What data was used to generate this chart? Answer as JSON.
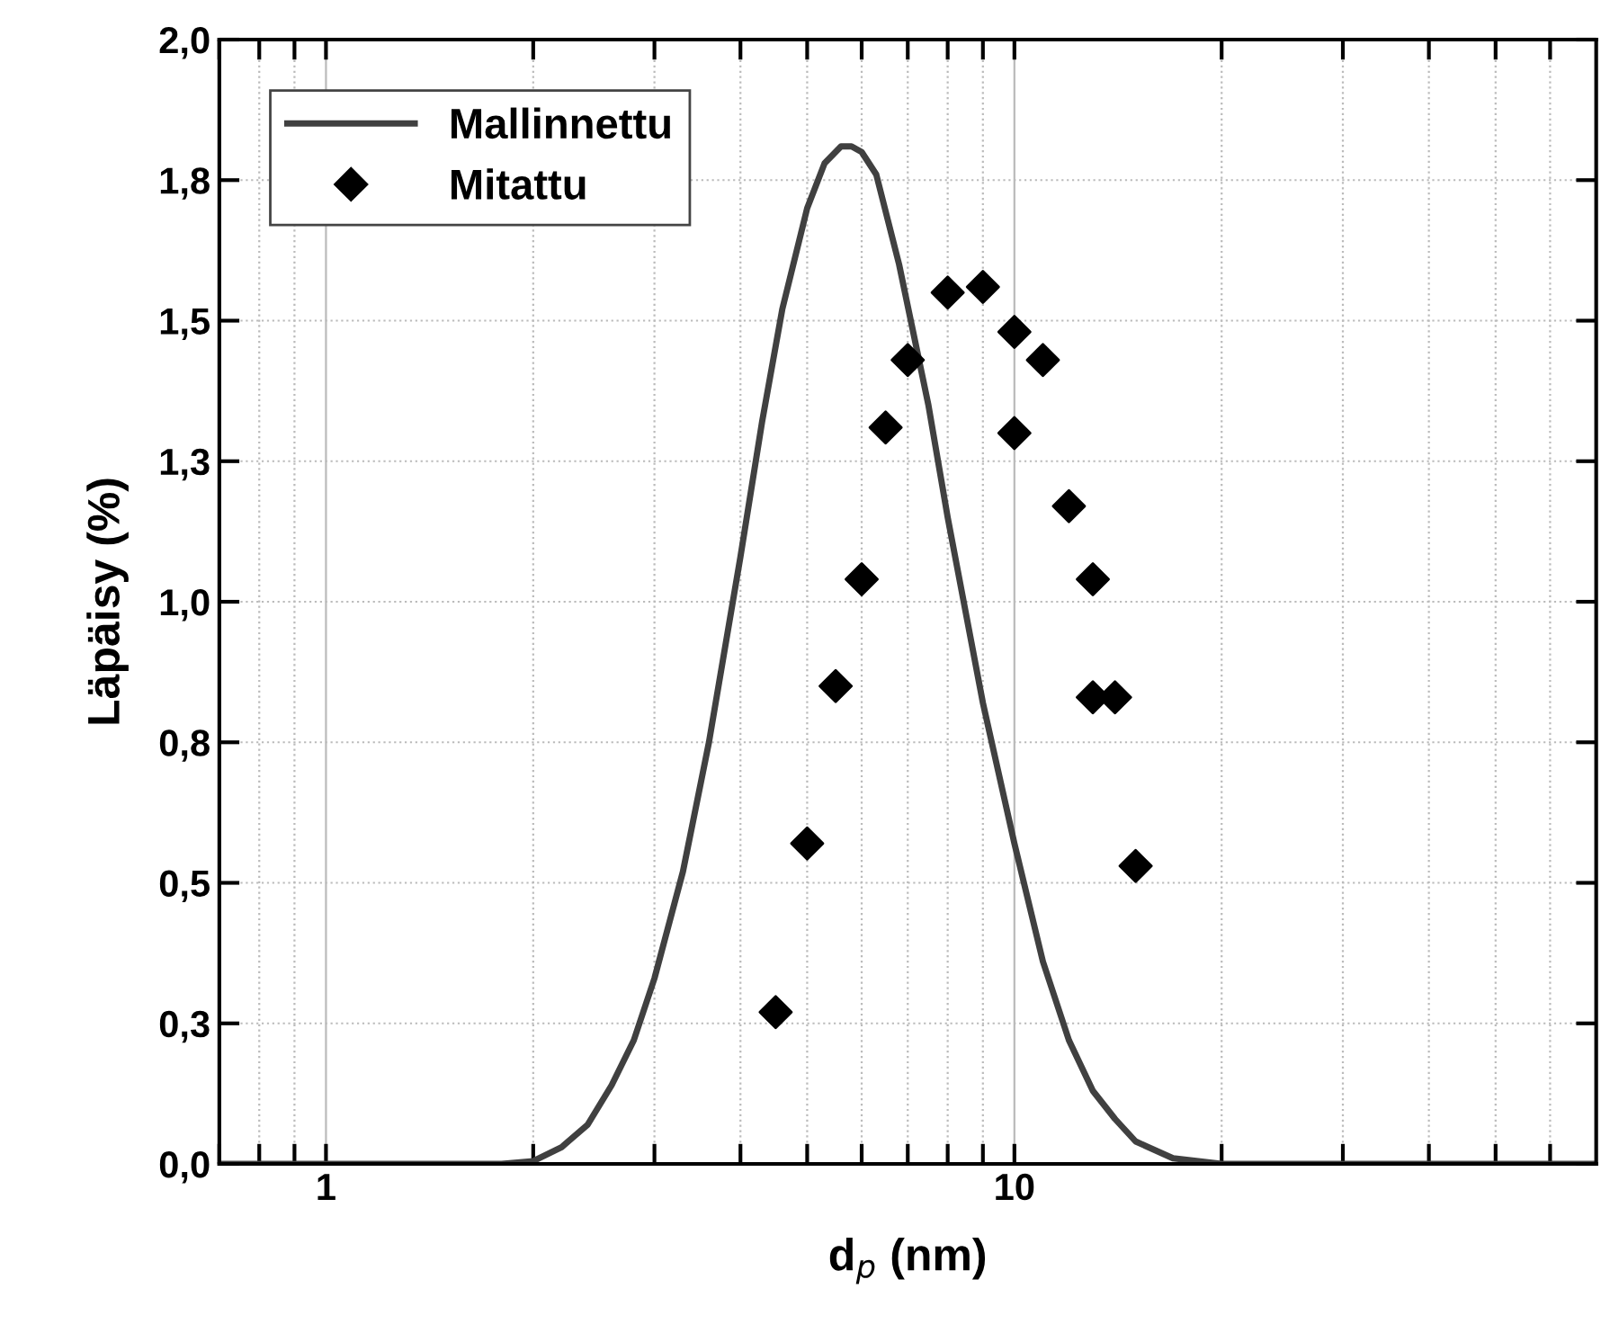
{
  "chart_data": {
    "type": "line",
    "xlabel": "d$_{p}$ (nm)",
    "ylabel": "Läpäisy (%)",
    "log": "x",
    "grid": true,
    "legend": "top left",
    "xlim": [
      0.7,
      70
    ],
    "ylim": [
      0,
      2.0
    ],
    "xticks": [
      {
        "value": 0.7,
        "label": null
      },
      {
        "value": 0.8,
        "label": null
      },
      {
        "value": 0.9,
        "label": null
      },
      1,
      {
        "value": 2,
        "label": null
      },
      {
        "value": 3,
        "label": null
      },
      {
        "value": 4,
        "label": null
      },
      {
        "value": 5,
        "label": null
      },
      {
        "value": 6,
        "label": null
      },
      {
        "value": 7,
        "label": null
      },
      {
        "value": 8,
        "label": null
      },
      {
        "value": 9,
        "label": null
      },
      10,
      {
        "value": 20,
        "label": null
      },
      {
        "value": 30,
        "label": null
      },
      {
        "value": 40,
        "label": null
      },
      {
        "value": 50,
        "label": null
      },
      {
        "value": 60,
        "label": null
      }
    ],
    "yticks": [
      {
        "value": 0,
        "label": "0,0"
      },
      {
        "value": 0.25,
        "label": "0,3"
      },
      {
        "value": 0.5,
        "label": "0,5"
      },
      {
        "value": 0.75,
        "label": "0,8"
      },
      {
        "value": 1.0,
        "label": "1,0"
      },
      {
        "value": 1.25,
        "label": "1,3"
      },
      {
        "value": 1.5,
        "label": "1,5"
      },
      {
        "value": 1.75,
        "label": "1,8"
      },
      {
        "value": 2.0,
        "label": "2,0"
      }
    ],
    "series": [
      {
        "name": "Mallinnettu",
        "color": "#404040",
        "marker": "none",
        "line_style": "solid",
        "x": [
          0.7,
          1,
          1.5,
          1.8,
          2.0,
          2.2,
          2.4,
          2.6,
          2.8,
          3.0,
          3.3,
          3.6,
          4.0,
          4.3,
          4.6,
          5.0,
          5.3,
          5.6,
          5.8,
          6.0,
          6.3,
          6.8,
          7.5,
          8.0,
          9.0,
          10,
          11,
          12,
          13,
          14,
          15,
          17,
          20,
          30,
          70
        ],
        "values": [
          0,
          0,
          0,
          0,
          0.005,
          0.03,
          0.07,
          0.14,
          0.22,
          0.33,
          0.52,
          0.75,
          1.08,
          1.32,
          1.52,
          1.7,
          1.78,
          1.81,
          1.81,
          1.8,
          1.76,
          1.6,
          1.35,
          1.15,
          0.82,
          0.57,
          0.36,
          0.22,
          0.13,
          0.08,
          0.04,
          0.01,
          0,
          0,
          0
        ]
      },
      {
        "name": "Mitattu",
        "type": "scatter",
        "color": "#000000",
        "marker": "diamond",
        "x": [
          4.5,
          5.0,
          5.5,
          6.0,
          6.5,
          7.0,
          8.0,
          9.0,
          10,
          10,
          11,
          12,
          13,
          13,
          14,
          15
        ],
        "values": [
          0.27,
          0.57,
          0.85,
          1.04,
          1.31,
          1.43,
          1.55,
          1.56,
          1.48,
          1.3,
          1.43,
          1.17,
          1.04,
          0.83,
          0.83,
          0.53
        ]
      }
    ]
  }
}
